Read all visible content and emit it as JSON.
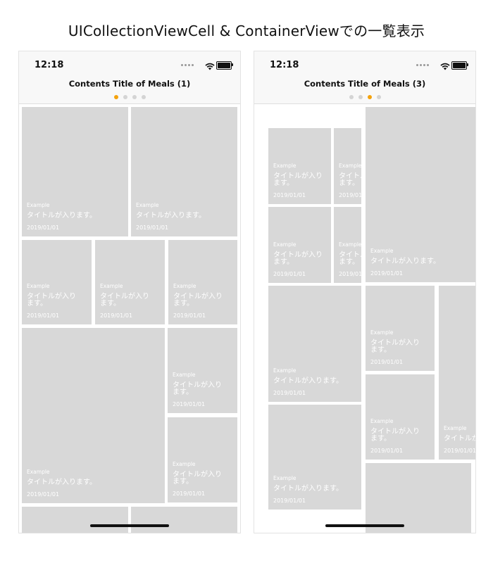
{
  "heading": "UICollectionViewCell & ContainerViewでの一覧表示",
  "phones": [
    {
      "time": "12:18",
      "nav_title": "Contents Title of Meals (1)",
      "active_page": 0,
      "page_count": 4
    },
    {
      "time": "12:18",
      "nav_title": "Contents Title of Meals (3)",
      "active_page": 2,
      "page_count": 4
    }
  ],
  "card": {
    "label": "Example",
    "title": "タイトルが入ります。",
    "title_wrapped": "タイトルが入り\nます。",
    "date": "2019/01/01"
  },
  "icons": {
    "wifi": "wifi-icon",
    "battery": "battery-icon",
    "signal": "signal-icon"
  },
  "colors": {
    "active_dot": "#f4a20c",
    "card_bg": "#d8d8d8"
  }
}
